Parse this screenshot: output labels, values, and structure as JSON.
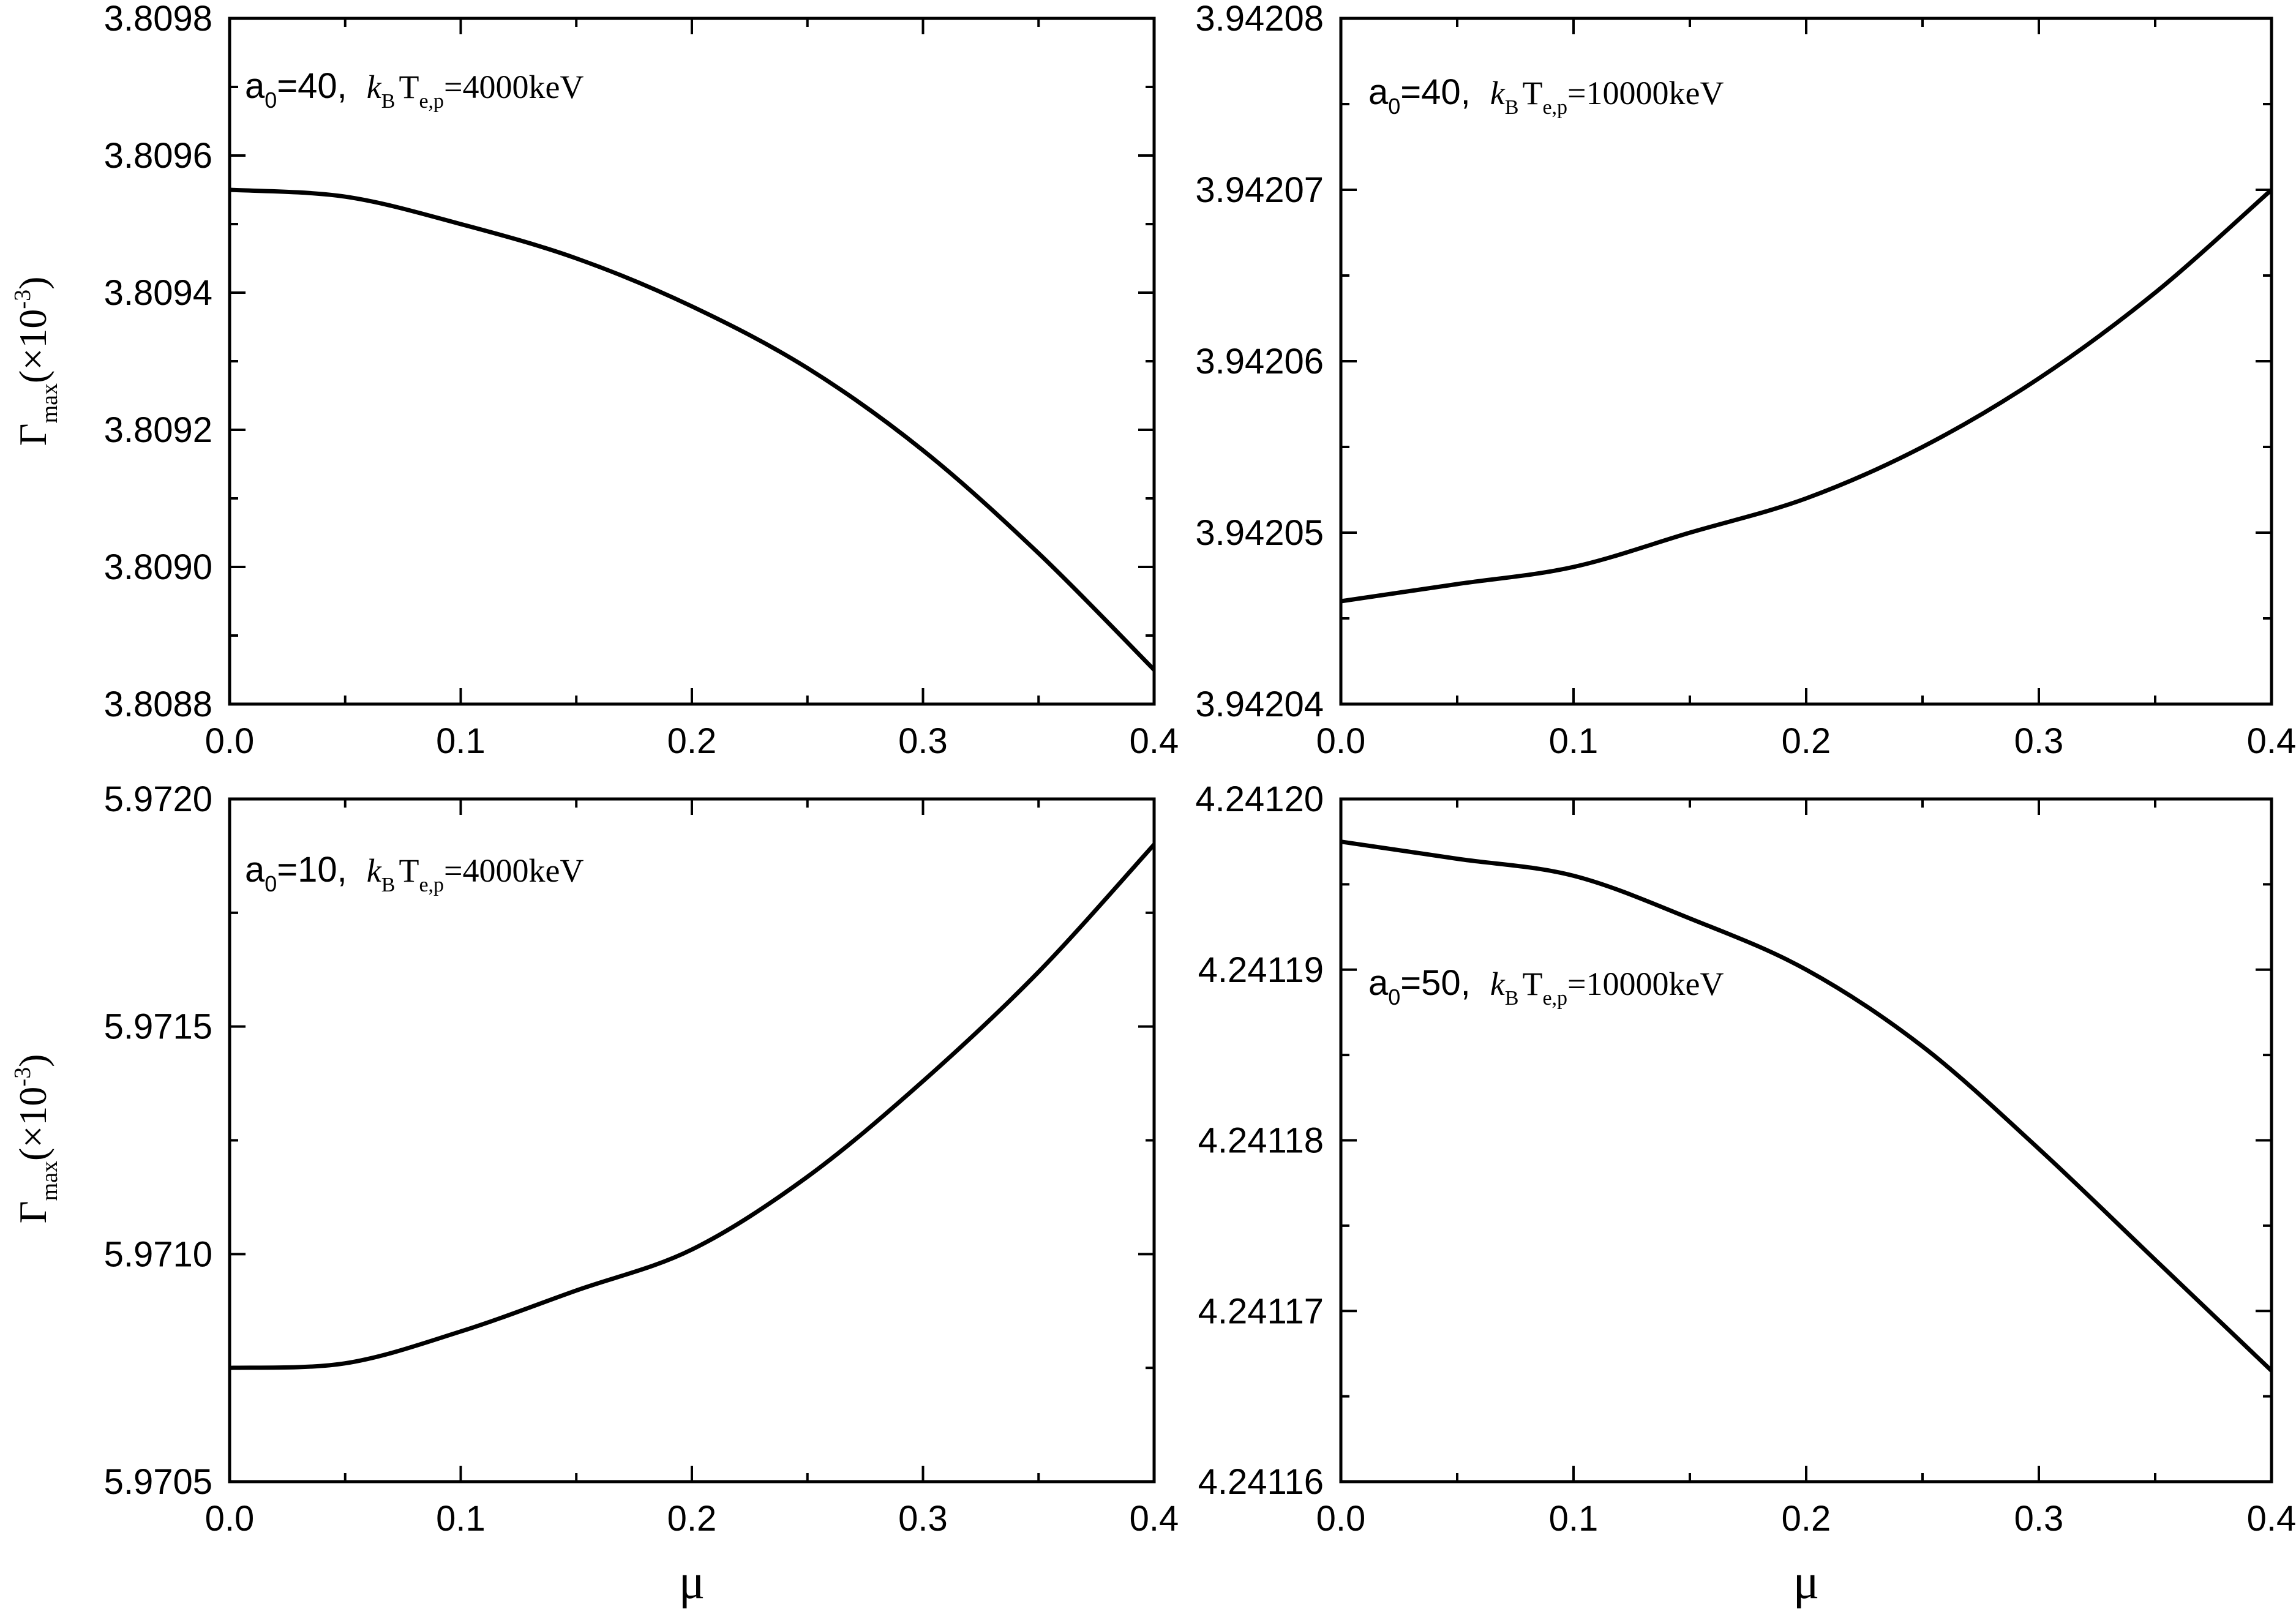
{
  "chart_data": [
    {
      "type": "line",
      "x": [
        0.0,
        0.05,
        0.1,
        0.15,
        0.2,
        0.25,
        0.3,
        0.35,
        0.4
      ],
      "series": [
        {
          "values": [
            3.80955,
            3.80954,
            3.8095,
            3.80945,
            3.80938,
            3.80929,
            3.80917,
            3.80902,
            3.80885
          ]
        }
      ],
      "xlim": [
        0.0,
        0.4
      ],
      "ylim": [
        3.8088,
        3.8098
      ],
      "xticks": [
        "0.0",
        "0.1",
        "0.2",
        "0.3",
        "0.4"
      ],
      "yticks": [
        "3.8088",
        "3.8090",
        "3.8092",
        "3.8094",
        "3.8096",
        "3.8098"
      ],
      "ylabel": "Γmax(×10-3)",
      "xlabel": "",
      "annotation": {
        "a0": "40",
        "kT": "4000keV"
      }
    },
    {
      "type": "line",
      "x": [
        0.0,
        0.05,
        0.1,
        0.15,
        0.2,
        0.25,
        0.3,
        0.35,
        0.4
      ],
      "series": [
        {
          "values": [
            3.942046,
            3.942047,
            3.942048,
            3.94205,
            3.942052,
            3.942055,
            3.942059,
            3.942064,
            3.94207
          ]
        }
      ],
      "xlim": [
        0.0,
        0.4
      ],
      "ylim": [
        3.94204,
        3.94208
      ],
      "xticks": [
        "0.0",
        "0.1",
        "0.2",
        "0.3",
        "0.4"
      ],
      "yticks": [
        "3.94204",
        "3.94205",
        "3.94206",
        "3.94207",
        "3.94208"
      ],
      "ylabel": "",
      "xlabel": "",
      "annotation": {
        "a0": "40",
        "kT": "10000keV"
      }
    },
    {
      "type": "line",
      "x": [
        0.0,
        0.05,
        0.1,
        0.15,
        0.2,
        0.25,
        0.3,
        0.35,
        0.4
      ],
      "series": [
        {
          "values": [
            5.97075,
            5.97076,
            5.97083,
            5.97092,
            5.97101,
            5.97117,
            5.97138,
            5.97162,
            5.9719
          ]
        }
      ],
      "xlim": [
        0.0,
        0.4
      ],
      "ylim": [
        5.9705,
        5.972
      ],
      "xticks": [
        "0.0",
        "0.1",
        "0.2",
        "0.3",
        "0.4"
      ],
      "yticks": [
        "5.9705",
        "5.9710",
        "5.9715",
        "5.9720"
      ],
      "ylabel": "Γmax(×10-3)",
      "xlabel": "μ",
      "annotation": {
        "a0": "10",
        "kT": "4000keV"
      }
    },
    {
      "type": "line",
      "x": [
        0.0,
        0.05,
        0.1,
        0.15,
        0.2,
        0.25,
        0.3,
        0.35,
        0.4
      ],
      "series": [
        {
          "values": [
            4.2411975,
            4.2411965,
            4.2411955,
            4.241193,
            4.24119,
            4.2411855,
            4.2411795,
            4.241173,
            4.2411665
          ]
        }
      ],
      "xlim": [
        0.0,
        0.4
      ],
      "ylim": [
        4.24116,
        4.2412
      ],
      "xticks": [
        "0.0",
        "0.1",
        "0.2",
        "0.3",
        "0.4"
      ],
      "yticks": [
        "4.24116",
        "4.24117",
        "4.24118",
        "4.24119",
        "4.24120"
      ],
      "ylabel": "",
      "xlabel": "μ",
      "annotation": {
        "a0": "50",
        "kT": "10000keV"
      }
    }
  ]
}
